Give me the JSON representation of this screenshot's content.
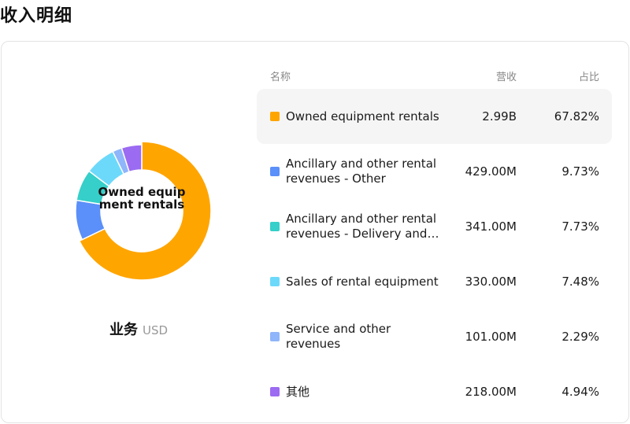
{
  "page_title": "收入明细",
  "segment": {
    "name": "业务",
    "currency": "USD"
  },
  "table": {
    "headers": {
      "name": "名称",
      "revenue": "营收",
      "share": "占比"
    },
    "rows": [
      {
        "name": "Owned equipment rentals",
        "revenue": "2.99B",
        "share": "67.82%",
        "color": "#FFA500",
        "highlighted": true
      },
      {
        "name": "Ancillary and other rental revenues - Other",
        "revenue": "429.00M",
        "share": "9.73%",
        "color": "#5B8FF9",
        "highlighted": false
      },
      {
        "name": "Ancillary and other rental revenues - Delivery and pick-up",
        "revenue": "341.00M",
        "share": "7.73%",
        "color": "#36CFC9",
        "highlighted": false
      },
      {
        "name": "Sales of rental equipment",
        "revenue": "330.00M",
        "share": "7.48%",
        "color": "#6DD9FA",
        "highlighted": false
      },
      {
        "name": "Service and other revenues",
        "revenue": "101.00M",
        "share": "2.29%",
        "color": "#8FB5FA",
        "highlighted": false
      },
      {
        "name": "其他",
        "revenue": "218.00M",
        "share": "4.94%",
        "color": "#9B6BF2",
        "highlighted": false
      }
    ]
  },
  "chart_data": {
    "type": "pie",
    "variant": "donut",
    "center_label": "Owned equipment rentals",
    "categories": [
      "Owned equipment rentals",
      "Ancillary and other rental revenues - Other",
      "Ancillary and other rental revenues - Delivery and pick-up",
      "Sales of rental equipment",
      "Service and other revenues",
      "其他"
    ],
    "values": [
      67.82,
      9.73,
      7.73,
      7.48,
      2.29,
      4.94
    ],
    "colors": [
      "#FFA500",
      "#5B8FF9",
      "#36CFC9",
      "#6DD9FA",
      "#8FB5FA",
      "#9B6BF2"
    ],
    "highlighted_index": 0
  }
}
